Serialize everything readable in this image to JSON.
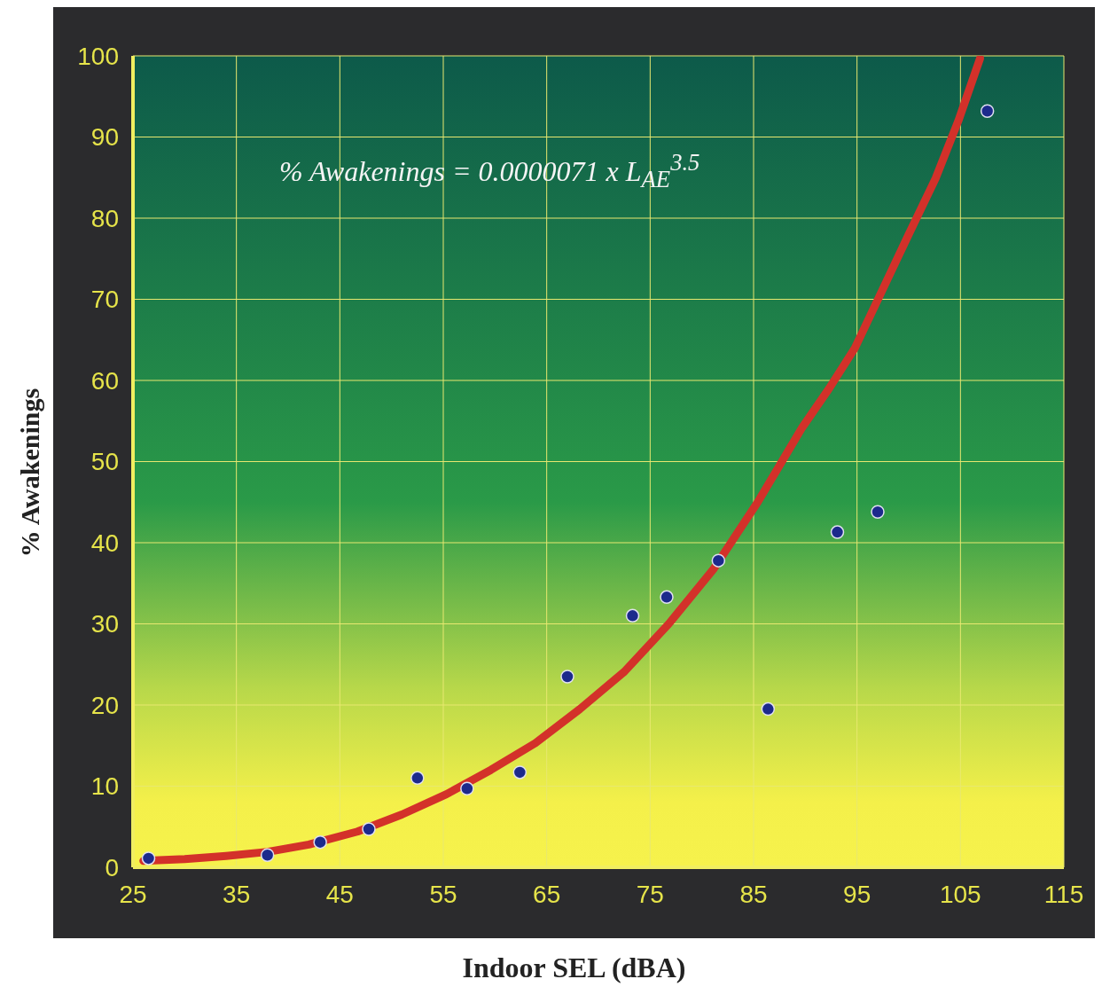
{
  "chart_data": {
    "type": "scatter",
    "xlabel": "Indoor SEL (dBA)",
    "ylabel": "% Awakenings",
    "xlim": [
      25,
      115
    ],
    "xticks": [
      25,
      35,
      45,
      55,
      65,
      75,
      85,
      95,
      105,
      115
    ],
    "ylim": [
      0,
      100
    ],
    "yticks": [
      0,
      10,
      20,
      30,
      40,
      50,
      60,
      70,
      80,
      90,
      100
    ],
    "grid": true,
    "marker": "circle",
    "annotations": [
      "% Awakenings = 0.0000071 x L$_{AE}$$^{3.5}$"
    ],
    "series": [
      {
        "color": "#1c2a8c",
        "x": [
          26.5,
          38,
          43.1,
          47.8,
          52.5,
          57.3,
          62.4,
          67,
          73.3,
          76.6,
          81.6,
          86.4,
          93.1,
          97,
          107.6
        ],
        "values": [
          1.1,
          1.5,
          3.1,
          4.7,
          11,
          9.7,
          11.7,
          23.5,
          31,
          33.3,
          37.8,
          19.5,
          41.3,
          43.8,
          93.2
        ]
      },
      {
        "type": "line",
        "color": "#d3312a",
        "line_style": "solid",
        "marker": "none",
        "x": [
          26,
          30,
          34,
          38,
          42,
          46.7,
          51,
          55.3,
          59.6,
          63.9,
          68.2,
          72.5,
          76.8,
          81.1,
          85.4,
          89.7,
          92.3,
          94.8,
          97.4,
          100,
          102.6,
          104.8,
          106.9
        ],
        "values": [
          0.8,
          1.0,
          1.4,
          1.9,
          2.8,
          4.4,
          6.5,
          9,
          12,
          15.3,
          19.5,
          24.1,
          30,
          36.7,
          45,
          54.2,
          59,
          64,
          71,
          78,
          84.9,
          92,
          99.7
        ]
      }
    ]
  }
}
